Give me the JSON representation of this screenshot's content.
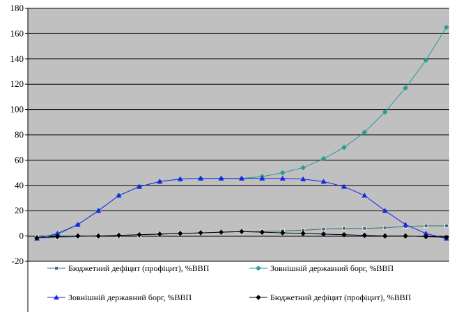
{
  "chart_data": {
    "type": "line",
    "title": "",
    "xlabel": "",
    "ylabel": "",
    "ylim": [
      -20,
      180
    ],
    "yticks": [
      -20,
      0,
      20,
      40,
      60,
      80,
      100,
      120,
      140,
      160,
      180
    ],
    "grid": "horizontal",
    "background": "#c0c0c0",
    "legend_position": "bottom",
    "series": [
      {
        "name": "Бюджетний дефіцит (профіцит), %ВВП",
        "color": "#3c6e7a",
        "marker": "square",
        "values": [
          -1.5,
          -1,
          -0.5,
          0,
          0.5,
          1,
          1.5,
          2,
          2.5,
          3,
          3.5,
          3.5,
          4,
          4.5,
          5.5,
          6,
          6,
          6.5,
          7.5,
          8,
          8
        ]
      },
      {
        "name": "Зовнішній державний борг, %ВВП",
        "color": "#2a9a95",
        "marker": "diamond",
        "values": [
          -1.5,
          1,
          9,
          20,
          32,
          39,
          43,
          45,
          45.5,
          45.5,
          45.5,
          47,
          50,
          54,
          61,
          70,
          82,
          98,
          117,
          139,
          165
        ]
      },
      {
        "name": "Зовнішній державний борг, %ВВП",
        "color": "#1428e6",
        "marker": "triangle",
        "values": [
          -2,
          2,
          9,
          20,
          32,
          39,
          43,
          45,
          45.5,
          45.5,
          45.5,
          45.5,
          45.5,
          45,
          43,
          39,
          32,
          20,
          9,
          2,
          -2
        ]
      },
      {
        "name": "Бюджетний дефіцит (профіцит), %ВВП",
        "color": "#000000",
        "marker": "diamond",
        "values": [
          -1.5,
          -0.5,
          0,
          0,
          0.5,
          1,
          1.5,
          2,
          2.5,
          3,
          3.5,
          3,
          2.5,
          2,
          1.5,
          1,
          0.5,
          0,
          0,
          -0.5,
          -1
        ]
      }
    ]
  }
}
